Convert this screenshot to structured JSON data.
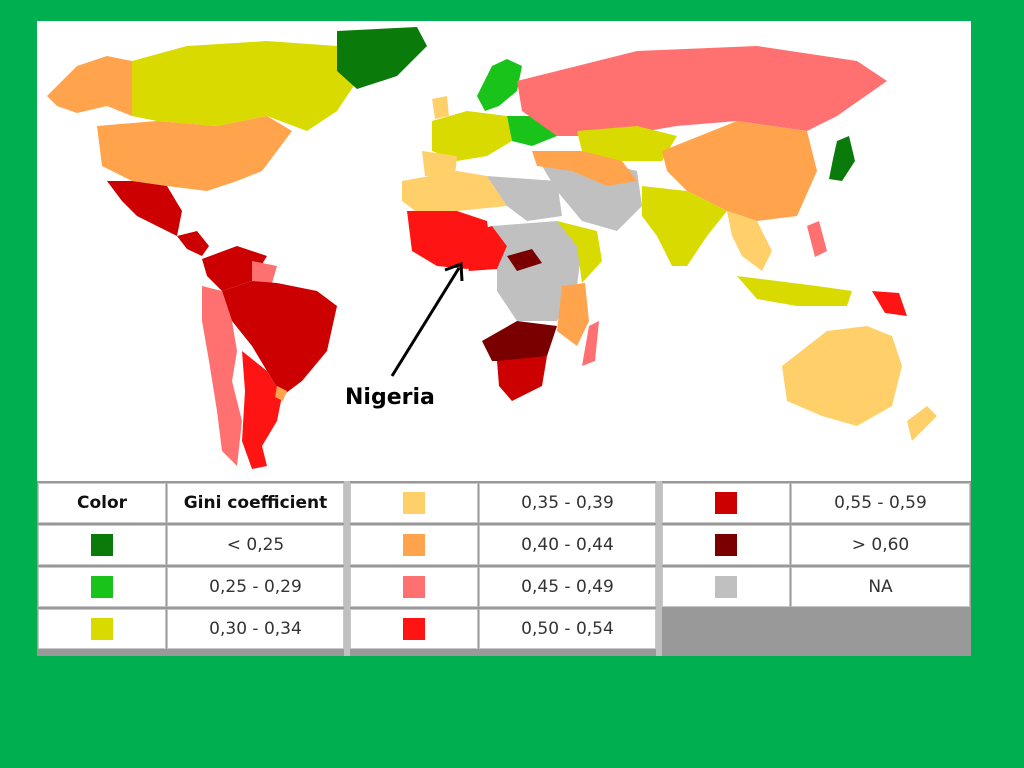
{
  "callout": {
    "label": "Nigeria"
  },
  "legend": {
    "header": {
      "color": "Color",
      "gini": "Gini coefficient"
    },
    "items": [
      {
        "range": "< 0,25",
        "color": "#0a7a0a"
      },
      {
        "range": "0,25 - 0,29",
        "color": "#19c319"
      },
      {
        "range": "0,30 - 0,34",
        "color": "#d9db00"
      },
      {
        "range": "0,35 - 0,39",
        "color": "#ffd06a"
      },
      {
        "range": "0,40 - 0,44",
        "color": "#ffa34d"
      },
      {
        "range": "0,45 - 0,49",
        "color": "#ff7070"
      },
      {
        "range": "0,50 - 0,54",
        "color": "#ff1414"
      },
      {
        "range": "0,55 - 0,59",
        "color": "#cc0000"
      },
      {
        "range": "> 0,60",
        "color": "#7a0000"
      },
      {
        "range": "NA",
        "color": "#c0c0c0"
      }
    ]
  },
  "colors": {
    "background": "#00b050",
    "ocean": "#ffffff",
    "na": "#c0c0c0"
  }
}
